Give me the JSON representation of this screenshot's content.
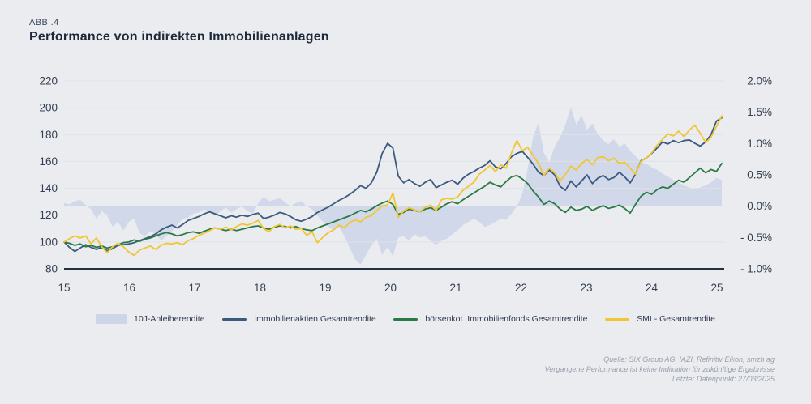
{
  "header": {
    "abb_label": "ABB .4",
    "title": "Performance von indirekten Immobilienanlagen"
  },
  "source": {
    "line1": "Quelle: SIX Group AG, IAZI, Refinitiv Eikon, smzh ag",
    "line2": "Vergangene Performance ist keine Indikation für zukünftige Ergebnisse",
    "line3": "Letzter Datenpunkt: 27/03/2025"
  },
  "colors": {
    "background": "#eaecef",
    "area_fill": "#cdd5e8",
    "blue_line": "#3b5a7f",
    "green_line": "#2b7a45",
    "yellow_line": "#f2c533",
    "gridline": "#dfe2e7",
    "axis_line": "#233044",
    "tick_text": "#333f52"
  },
  "chart_data": {
    "type": "line",
    "title": "Performance von indirekten Immobilienanlagen",
    "x_tick_labels": [
      "15",
      "16",
      "17",
      "18",
      "19",
      "20",
      "21",
      "22",
      "23",
      "24",
      "25"
    ],
    "x_range_years": [
      2015,
      2025.25
    ],
    "months_start": "2015-01",
    "months_end": "2025-03",
    "left_axis": {
      "ticks": [
        220,
        200,
        180,
        160,
        140,
        120,
        100,
        80
      ],
      "range": [
        80,
        220
      ]
    },
    "right_axis": {
      "tick_labels": [
        "2.0%",
        "1.5%",
        "1.0%",
        "0.5%",
        "0.0%",
        "- 0.5%",
        "- 1.0%"
      ],
      "tick_values": [
        2.0,
        1.5,
        1.0,
        0.5,
        0.0,
        -0.5,
        -1.0
      ],
      "range": [
        -1.0,
        2.0
      ]
    },
    "grid": true,
    "legend_position": "bottom",
    "series": [
      {
        "name": "10J-Anleiherendite",
        "style": "area",
        "axis": "right",
        "color": "#cdd5e8",
        "baseline": 0,
        "values": [
          0.05,
          0.03,
          0.08,
          0.1,
          0.02,
          -0.05,
          -0.2,
          -0.08,
          -0.15,
          -0.33,
          -0.25,
          -0.39,
          -0.25,
          -0.2,
          -0.43,
          -0.48,
          -0.4,
          -0.45,
          -0.55,
          -0.48,
          -0.4,
          -0.3,
          -0.2,
          -0.18,
          -0.12,
          -0.1,
          -0.05,
          -0.1,
          -0.15,
          -0.08,
          -0.02,
          -0.1,
          -0.05,
          0.0,
          -0.08,
          -0.12,
          0.05,
          0.15,
          0.08,
          0.1,
          0.13,
          0.06,
          0.0,
          0.05,
          0.08,
          0.0,
          -0.05,
          -0.15,
          -0.25,
          -0.33,
          -0.38,
          -0.33,
          -0.48,
          -0.67,
          -0.85,
          -0.93,
          -0.78,
          -0.62,
          -0.52,
          -0.78,
          -0.65,
          -0.8,
          -0.5,
          -0.48,
          -0.55,
          -0.45,
          -0.5,
          -0.48,
          -0.55,
          -0.62,
          -0.55,
          -0.52,
          -0.45,
          -0.38,
          -0.3,
          -0.25,
          -0.2,
          -0.25,
          -0.33,
          -0.3,
          -0.25,
          -0.2,
          -0.22,
          -0.12,
          0.0,
          0.2,
          0.6,
          1.1,
          1.33,
          0.85,
          0.7,
          0.95,
          1.1,
          1.3,
          1.58,
          1.3,
          1.45,
          1.22,
          1.32,
          1.15,
          1.05,
          0.99,
          1.07,
          0.95,
          1.0,
          0.88,
          0.8,
          0.7,
          0.68,
          0.62,
          0.58,
          0.52,
          0.47,
          0.42,
          0.38,
          0.33,
          0.3,
          0.27,
          0.3,
          0.33,
          0.38,
          0.45,
          0.42
        ]
      },
      {
        "name": "Immobilienaktien Gesamtrendite",
        "style": "line",
        "axis": "left",
        "color": "#3b5a7f",
        "values": [
          100,
          96,
          93,
          95.5,
          98,
          96,
          94.5,
          96,
          93.5,
          95,
          97.5,
          98,
          98.5,
          99.5,
          101,
          102.5,
          104,
          106,
          109,
          111,
          112.5,
          110.5,
          113,
          116,
          117.5,
          119,
          121,
          122.5,
          121,
          119.5,
          118,
          119.5,
          118.5,
          120,
          119,
          120.5,
          121.5,
          117.5,
          118.5,
          120,
          122,
          121,
          119,
          116.5,
          115.5,
          117,
          119,
          122,
          124,
          126,
          128.5,
          131,
          133,
          135.5,
          138.5,
          142,
          140,
          144,
          152,
          166,
          173.5,
          170,
          149,
          144,
          146.5,
          143.5,
          141.5,
          144.5,
          146.5,
          140.5,
          142.5,
          144.5,
          146,
          143,
          147.5,
          150.5,
          152.5,
          155,
          157,
          160.5,
          156,
          154.5,
          158.5,
          163.5,
          166,
          167.5,
          163,
          158,
          152,
          149.5,
          153.5,
          150,
          141.5,
          138.5,
          145.5,
          141,
          145.5,
          150,
          143.5,
          147.5,
          149.5,
          146.5,
          148,
          152,
          148.5,
          144,
          150.5,
          160.5,
          162.5,
          166,
          170,
          174.5,
          173,
          175.5,
          174,
          175.5,
          176,
          173.5,
          171.5,
          174.5,
          180,
          190,
          192.5
        ]
      },
      {
        "name": "börsenkot. Immobilienfonds Gesamtrendite",
        "style": "line",
        "axis": "left",
        "color": "#2b7a45",
        "values": [
          100,
          99,
          97.5,
          98.5,
          96.5,
          97.5,
          96,
          97,
          95.5,
          96.5,
          98,
          99.5,
          100,
          101.5,
          100.5,
          102,
          103,
          104.5,
          106,
          107,
          106,
          104.5,
          105.5,
          107,
          107.5,
          106.5,
          108,
          109.5,
          110.5,
          109.5,
          108.5,
          109.5,
          108.5,
          109.5,
          110.5,
          111.5,
          112,
          110.5,
          109.5,
          111,
          112,
          111.5,
          110.5,
          111.5,
          110,
          109,
          108.5,
          110.5,
          112,
          113.5,
          115,
          116.5,
          118,
          119.5,
          121.5,
          123.5,
          122.5,
          124.5,
          127,
          129,
          130.5,
          128,
          120.5,
          122,
          124.5,
          123.5,
          122.5,
          124.5,
          125.5,
          123.5,
          126,
          128.5,
          130,
          128.5,
          131.5,
          134,
          136.5,
          139,
          141.5,
          144.5,
          142.5,
          141,
          145,
          148.5,
          149.5,
          147,
          143.5,
          138,
          133.5,
          128,
          130.5,
          128.5,
          124.5,
          122,
          126,
          123.5,
          124.5,
          126.5,
          123.5,
          125.5,
          127,
          125,
          126,
          127.5,
          125,
          121.5,
          128,
          134,
          137,
          135.5,
          139,
          141,
          140,
          143,
          146,
          144.5,
          148,
          151.5,
          155,
          151.5,
          154,
          152.5,
          158.5
        ]
      },
      {
        "name": "SMI - Gesamtrendite",
        "style": "line",
        "axis": "left",
        "color": "#f2c533",
        "values": [
          100,
          102.5,
          104.5,
          103,
          104.5,
          98.5,
          103,
          96.5,
          92,
          96.5,
          99,
          96.5,
          92.5,
          90,
          94,
          95.5,
          97,
          94.5,
          97.5,
          99,
          98.5,
          99.5,
          98,
          101,
          102.5,
          105,
          106.5,
          108.5,
          110.5,
          109.5,
          111,
          109,
          111.5,
          113.5,
          112.5,
          114,
          116,
          110,
          107.5,
          111.5,
          113,
          110.5,
          112,
          109.5,
          110,
          105,
          107.5,
          99.5,
          103.5,
          107,
          109,
          112.5,
          110.5,
          114.5,
          116.5,
          115,
          118.5,
          119.5,
          123.5,
          127,
          127.5,
          136.5,
          118.5,
          123,
          125.5,
          124,
          122.5,
          126,
          127.5,
          123.5,
          131.5,
          132.5,
          132,
          133.5,
          138.5,
          141.5,
          144.5,
          150.5,
          153.5,
          157,
          152.5,
          157.5,
          155,
          166.5,
          175.5,
          168,
          170.5,
          164.5,
          158.5,
          149.5,
          155,
          151.5,
          145.5,
          150.5,
          156.5,
          153.5,
          158.5,
          161.5,
          157.5,
          163,
          163.5,
          160.5,
          162.5,
          158.5,
          159.5,
          155,
          150.5,
          160,
          162.5,
          166.5,
          172,
          176.5,
          180.5,
          179,
          182.5,
          178.5,
          183.5,
          187,
          181,
          174,
          178,
          186,
          194
        ]
      }
    ]
  },
  "legend": {
    "items": [
      {
        "label": "10J-Anleiherendite",
        "swatch": "area",
        "color": "#cdd5e8"
      },
      {
        "label": "Immobilienaktien Gesamtrendite",
        "swatch": "line",
        "color": "#3b5a7f"
      },
      {
        "label": "börsenkot. Immobilienfonds Gesamtrendite",
        "swatch": "line",
        "color": "#2b7a45"
      },
      {
        "label": "SMI - Gesamtrendite",
        "swatch": "line",
        "color": "#f2c533"
      }
    ]
  }
}
